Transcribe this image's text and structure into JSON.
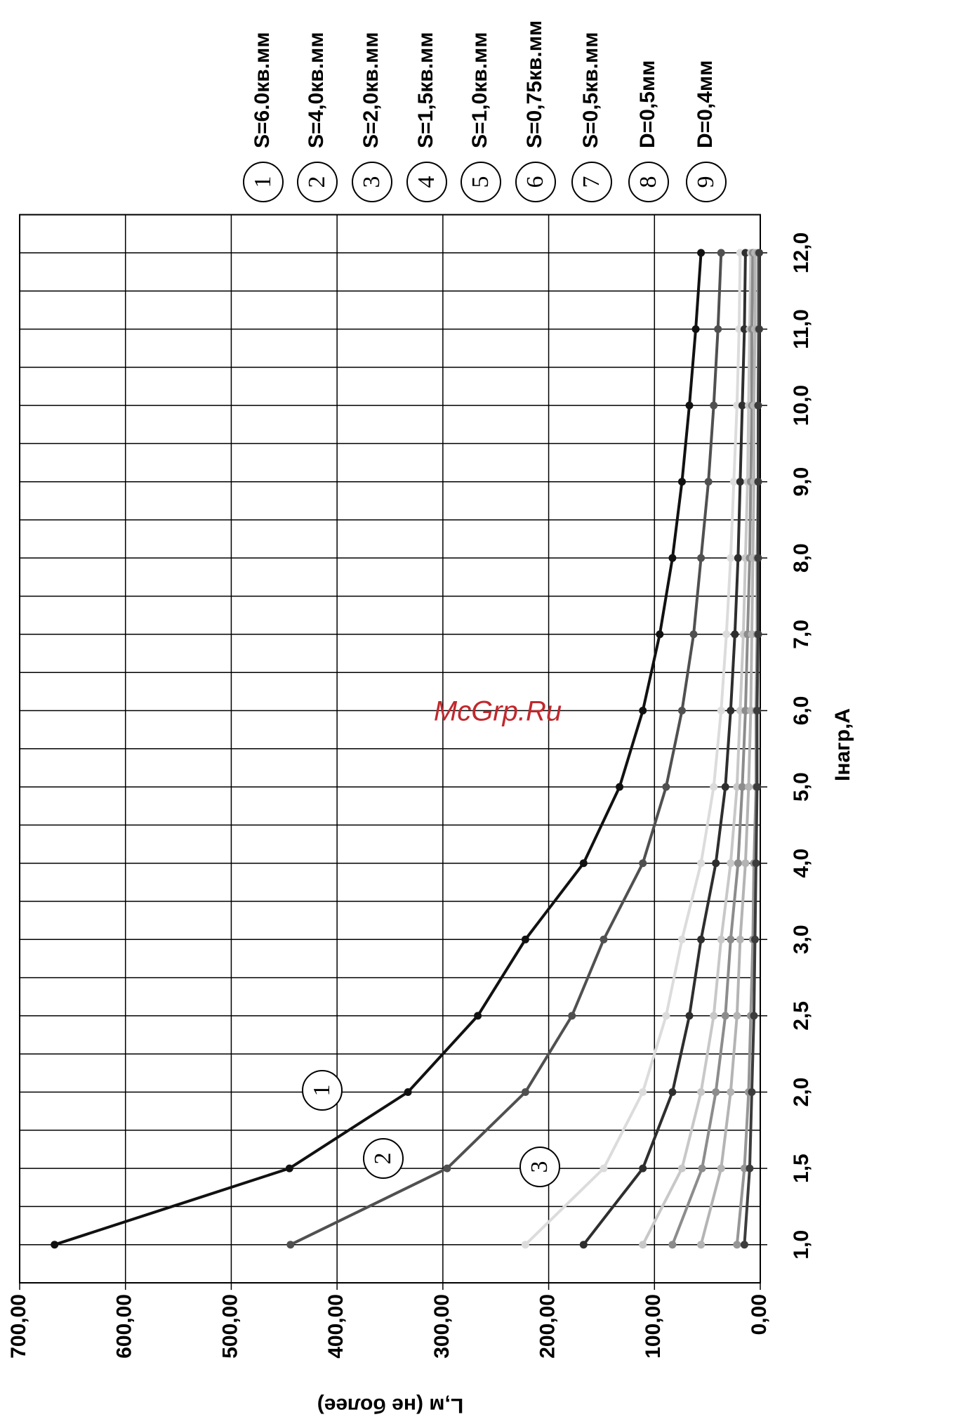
{
  "chart_data": {
    "type": "line",
    "x_label": "Iнагр,A",
    "y_label": "L,м (не более)",
    "watermark": "McGrp.Ru",
    "categories": [
      "1,0",
      "1,5",
      "2,0",
      "2,5",
      "3,0",
      "4,0",
      "5,0",
      "6,0",
      "7,0",
      "8,0",
      "9,0",
      "10,0",
      "11,0",
      "12,0"
    ],
    "ylim": [
      0,
      700
    ],
    "yticks": [
      {
        "value": 0,
        "label": "0,00"
      },
      {
        "value": 100,
        "label": "100,00"
      },
      {
        "value": 200,
        "label": "200,00"
      },
      {
        "value": 300,
        "label": "300,00"
      },
      {
        "value": 400,
        "label": "400,00"
      },
      {
        "value": 500,
        "label": "500,00"
      },
      {
        "value": 600,
        "label": "600,00"
      },
      {
        "value": 700,
        "label": "700,00"
      }
    ],
    "grid": true,
    "series": [
      {
        "label": "1",
        "name": "S=6.0кв.мм",
        "color": "#111111",
        "values": [
          667,
          445,
          333,
          267,
          222,
          167,
          133,
          111,
          95,
          83,
          74,
          67,
          61,
          56
        ]
      },
      {
        "label": "2",
        "name": "S=4,0кв.мм",
        "color": "#505050",
        "values": [
          444,
          296,
          222,
          178,
          148,
          111,
          89,
          74,
          63,
          56,
          49,
          44,
          40,
          37
        ]
      },
      {
        "label": "3",
        "name": "S=2,0кв.мм",
        "color": "#dcdcdc",
        "values": [
          222,
          148,
          111,
          89,
          74,
          56,
          44,
          37,
          32,
          28,
          25,
          22,
          20,
          19
        ]
      },
      {
        "label": "4",
        "name": "S=1,5кв.мм",
        "color": "#2e2e2e",
        "values": [
          167,
          111,
          83,
          67,
          56,
          42,
          33,
          28,
          24,
          21,
          19,
          17,
          15,
          14
        ]
      },
      {
        "label": "5",
        "name": "S=1,0кв.мм",
        "color": "#c8c8c8",
        "values": [
          111,
          74,
          56,
          44,
          37,
          28,
          22,
          19,
          16,
          14,
          12,
          11,
          10,
          9
        ]
      },
      {
        "label": "6",
        "name": "S=0,75кв.мм",
        "color": "#8c8c8c",
        "values": [
          83,
          55,
          42,
          33,
          28,
          21,
          17,
          14,
          12,
          10,
          9,
          8,
          8,
          7
        ]
      },
      {
        "label": "7",
        "name": "S=0,5кв.мм",
        "color": "#b4b4b4",
        "values": [
          56,
          37,
          28,
          22,
          19,
          14,
          11,
          9,
          8,
          7,
          6,
          6,
          5,
          5
        ]
      },
      {
        "label": "8",
        "name": "D=0,5мм",
        "color": "#969696",
        "values": [
          22,
          15,
          11,
          9,
          7,
          6,
          4,
          4,
          3,
          3,
          2,
          2,
          2,
          2
        ]
      },
      {
        "label": "9",
        "name": "D=0,4мм",
        "color": "#3c3c3c",
        "values": [
          15,
          10,
          8,
          6,
          5,
          4,
          3,
          3,
          2,
          2,
          2,
          2,
          1,
          1
        ]
      }
    ]
  }
}
